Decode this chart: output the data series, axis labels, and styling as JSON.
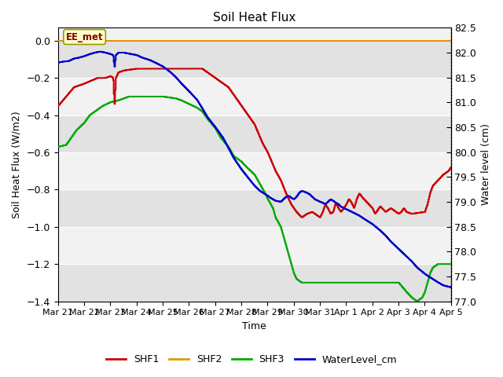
{
  "title": "Soil Heat Flux",
  "xlabel": "Time",
  "ylabel_left": "Soil Heat Flux (W/m2)",
  "ylabel_right": "Water level (cm)",
  "ylim_left": [
    -1.4,
    0.07
  ],
  "ylim_right": [
    77.0,
    82.5
  ],
  "background_color": "#ffffff",
  "plot_bg_light": "#f0f0f0",
  "plot_bg_dark": "#dcdcdc",
  "annotation_label": "EE_met",
  "colors": {
    "SHF1": "#cc0000",
    "SHF2": "#dd9900",
    "SHF3": "#00aa00",
    "WaterLevel": "#0000cc"
  },
  "x_tick_labels": [
    "Mar 21",
    "Mar 22",
    "Mar 23",
    "Mar 24",
    "Mar 25",
    "Mar 26",
    "Mar 27",
    "Mar 28",
    "Mar 29",
    "Mar 30",
    "Mar 31",
    "Apr 1",
    "Apr 2",
    "Apr 3",
    "Apr 4",
    "Apr 5"
  ],
  "x_ticks": [
    0,
    1,
    2,
    3,
    4,
    5,
    6,
    7,
    8,
    9,
    10,
    11,
    12,
    13,
    14,
    15
  ],
  "yticks_left": [
    -1.4,
    -1.2,
    -1.0,
    -0.8,
    -0.6,
    -0.4,
    -0.2,
    0.0
  ],
  "yticks_right": [
    77.0,
    77.5,
    78.0,
    78.5,
    79.0,
    79.5,
    80.0,
    80.5,
    81.0,
    81.5,
    82.0,
    82.5
  ]
}
